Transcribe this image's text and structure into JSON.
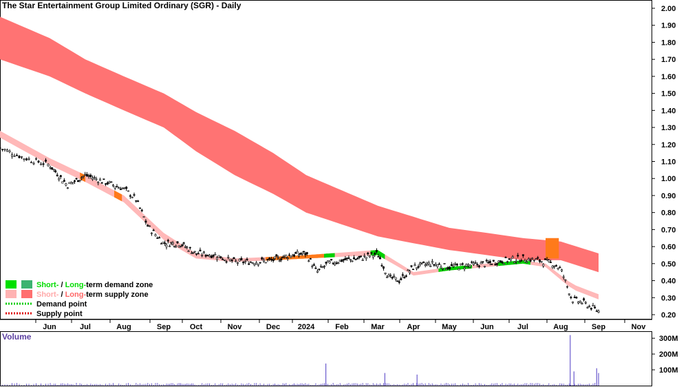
{
  "chart_data": {
    "type": "candlestick",
    "title": "The Star Entertainment Group Limited Ordinary (SGR) - Daily",
    "price_axis": {
      "ticks": [
        "2.00",
        "1.90",
        "1.80",
        "1.70",
        "1.60",
        "1.50",
        "1.40",
        "1.30",
        "1.20",
        "1.10",
        "1.00",
        "0.90",
        "0.80",
        "0.70",
        "0.60",
        "0.50",
        "0.40",
        "0.30",
        "0.20"
      ],
      "ylim": [
        0.18,
        2.02
      ],
      "scale": "linear"
    },
    "x_axis": {
      "labels": [
        "Jun",
        "Jul",
        "Aug",
        "Sep",
        "Oct",
        "Nov",
        "Dec",
        "2024",
        "Feb",
        "Mar",
        "Apr",
        "May",
        "Jun",
        "Jul",
        "Aug",
        "Sep",
        "Nov"
      ]
    },
    "legend": {
      "placement": "bottom-left",
      "items": [
        {
          "prefix": "Short-",
          "mid": " / ",
          "main": "Long-",
          "suffix": "term demand zone",
          "prefix_color": "#00dd00",
          "main_color": "#00dd00",
          "swatch_short": "#00e000",
          "swatch_long": "#3cb371"
        },
        {
          "prefix": "Short-",
          "mid": " / ",
          "main": "Long-",
          "suffix": "term supply zone",
          "prefix_color": "#ffaaaa",
          "main_color": "#ff6666",
          "swatch_short": "#ffb3b3",
          "swatch_long": "#ff6f6f"
        },
        {
          "label": "Demand point",
          "color": "#00cc00"
        },
        {
          "label": "Supply point",
          "color": "#dd0000"
        }
      ]
    },
    "long_term_supply_zone": {
      "color": "#ff7373",
      "x_month_index": [
        0,
        2,
        4,
        6,
        8,
        10,
        12,
        14,
        15,
        16
      ],
      "upper": [
        1.95,
        1.7,
        1.5,
        1.28,
        1.02,
        0.84,
        0.71,
        0.65,
        0.63,
        0.56
      ],
      "lower": [
        1.7,
        1.5,
        1.3,
        1.02,
        0.8,
        0.66,
        0.58,
        0.52,
        0.52,
        0.45
      ]
    },
    "short_term_supply_zone": {
      "color": "#ffb8b8",
      "x_month_index": [
        0,
        1,
        2,
        3,
        4,
        5,
        6,
        8,
        10,
        11,
        12,
        13,
        14,
        14.6,
        15.3,
        16
      ],
      "upper": [
        1.28,
        1.12,
        1.02,
        0.9,
        0.68,
        0.56,
        0.53,
        0.55,
        0.58,
        0.45,
        0.48,
        0.5,
        0.52,
        0.5,
        0.38,
        0.32
      ],
      "lower": [
        1.24,
        1.08,
        0.98,
        0.86,
        0.64,
        0.53,
        0.51,
        0.53,
        0.55,
        0.43,
        0.46,
        0.48,
        0.5,
        0.48,
        0.35,
        0.29
      ]
    },
    "price_series": {
      "x_month_index": [
        0,
        0.5,
        1,
        1.5,
        2,
        2.5,
        3,
        3.3,
        3.6,
        4,
        4.5,
        5,
        5.5,
        6,
        6.5,
        7,
        7.5,
        8,
        8.3,
        8.6,
        9,
        9.5,
        10,
        10.3,
        10.6,
        11,
        11.5,
        12,
        12.5,
        13,
        13.5,
        14,
        14.4,
        14.8,
        15.0,
        15.3,
        15.6,
        16
      ],
      "close": [
        1.18,
        1.12,
        1.08,
        0.96,
        1.02,
        0.98,
        0.94,
        0.88,
        0.72,
        0.62,
        0.62,
        0.56,
        0.55,
        0.51,
        0.51,
        0.52,
        0.55,
        0.56,
        0.45,
        0.5,
        0.52,
        0.53,
        0.56,
        0.42,
        0.4,
        0.48,
        0.5,
        0.48,
        0.49,
        0.5,
        0.52,
        0.53,
        0.52,
        0.5,
        0.47,
        0.29,
        0.27,
        0.22
      ]
    },
    "volume": {
      "label": "Volume",
      "ticks": [
        "300M",
        "200M",
        "100M"
      ],
      "ylim": [
        0,
        340
      ],
      "spikes": [
        {
          "x_month_index": 8.55,
          "value": 140
        },
        {
          "x_month_index": 10.2,
          "value": 80
        },
        {
          "x_month_index": 11.1,
          "value": 70
        },
        {
          "x_month_index": 15.25,
          "value": 320
        },
        {
          "x_month_index": 15.35,
          "value": 90
        },
        {
          "x_month_index": 15.95,
          "value": 110
        },
        {
          "x_month_index": 16.0,
          "value": 80
        }
      ]
    }
  }
}
